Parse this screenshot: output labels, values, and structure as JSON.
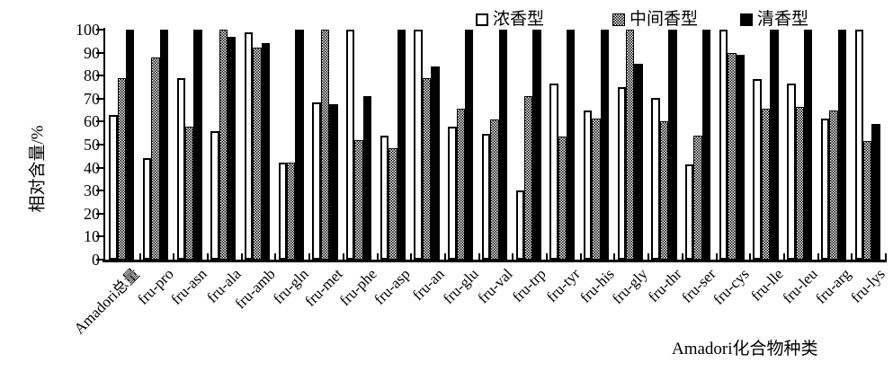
{
  "chart_data": {
    "type": "bar",
    "title": "",
    "xlabel": "Amadori化合物种类",
    "ylabel": "相对含量/%",
    "ylim": [
      0,
      100
    ],
    "yticks": [
      0,
      10,
      20,
      30,
      40,
      50,
      60,
      70,
      80,
      90,
      100
    ],
    "grid": false,
    "legend_position": "top",
    "categories": [
      "Amadori总量",
      "fru-pro",
      "fru-asn",
      "fru-ala",
      "fru-amb",
      "fru-gln",
      "fru-met",
      "fru-phe",
      "fru-asp",
      "fru-an",
      "fru-glu",
      "fru-val",
      "fru-trp",
      "fru-tyr",
      "fru-his",
      "fru-gly",
      "fru-thr",
      "fru-ser",
      "fru-cys",
      "fru-lle",
      "fru-leu",
      "fru-arg",
      "fru-lys"
    ],
    "series": [
      {
        "name": "浓香型",
        "style": "white",
        "values": [
          63,
          44,
          79,
          56,
          99,
          42,
          68.5,
          100,
          54,
          100,
          58,
          54.5,
          30,
          76.5,
          65,
          75,
          70.5,
          41.5,
          100,
          78.5,
          76.5,
          61.5,
          100
        ]
      },
      {
        "name": "中间香型",
        "style": "hatched",
        "values": [
          79,
          88,
          58,
          100,
          92,
          42,
          100,
          52,
          48.5,
          79,
          65.5,
          61,
          71,
          53.5,
          61.5,
          100,
          60,
          54,
          90,
          65.5,
          66.5,
          65,
          51.5
        ]
      },
      {
        "name": "清香型",
        "style": "black",
        "values": [
          100,
          100,
          100,
          97,
          94,
          100,
          67.5,
          71,
          100,
          84,
          100,
          100,
          100,
          100,
          100,
          85,
          100,
          100,
          89,
          100,
          100,
          100,
          59
        ]
      }
    ]
  },
  "colors": {
    "foreground": "#000000",
    "background": "#ffffff"
  }
}
